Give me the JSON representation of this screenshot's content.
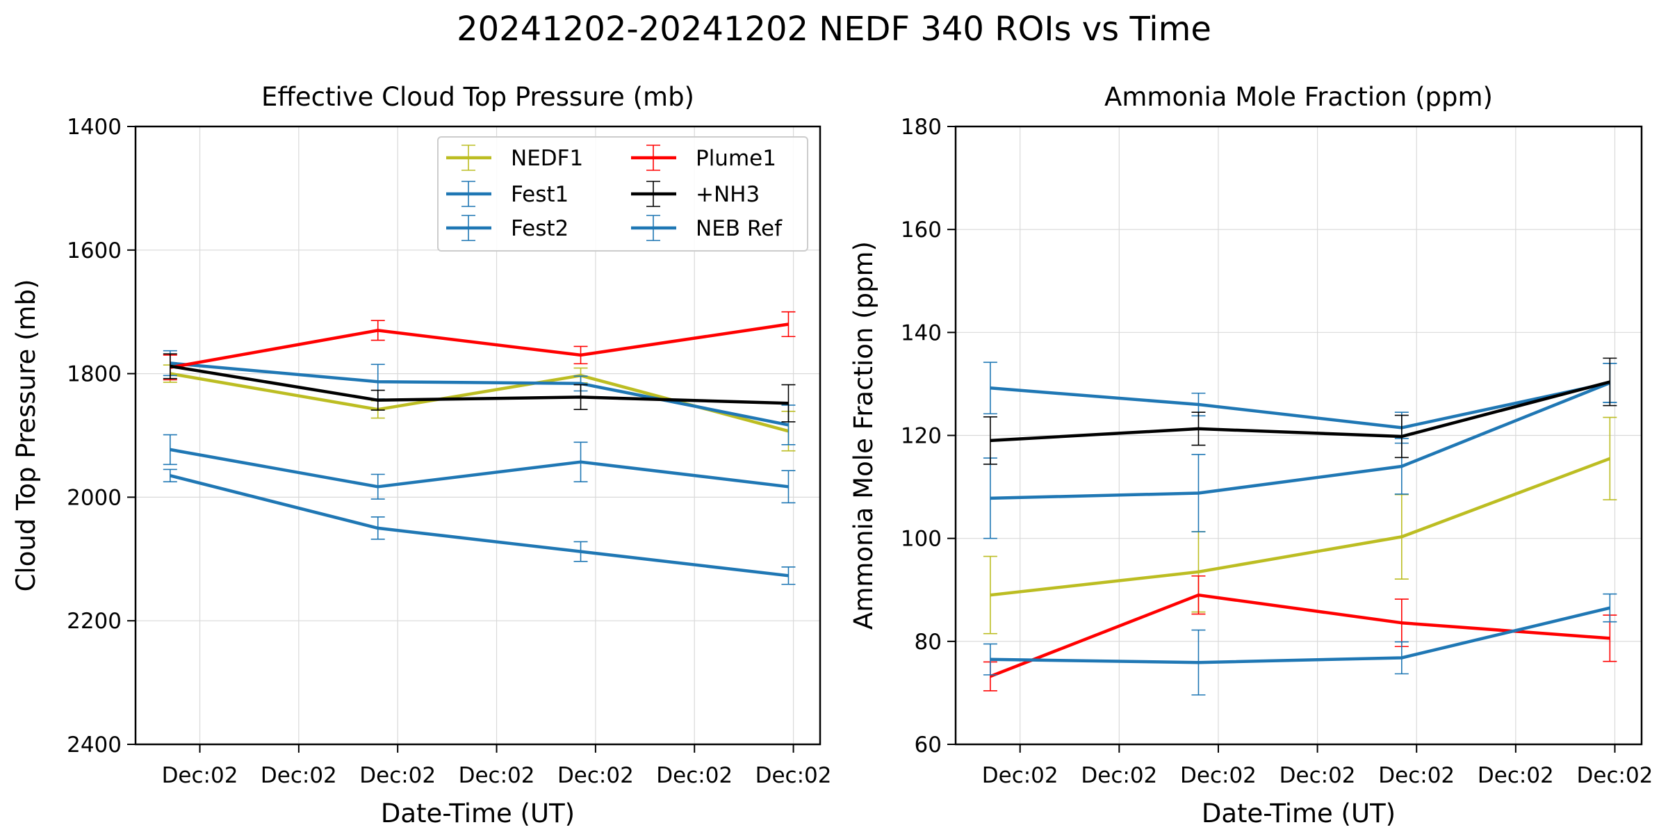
{
  "figure": {
    "title": "20241202-20241202 NEDF 340 ROIs vs Time"
  },
  "chart_data": [
    {
      "type": "line",
      "title": "Effective Cloud Top Pressure (mb)",
      "xlabel": "Date-Time (UT)",
      "ylabel": "Cloud Top Pressure (mb)",
      "x_tick_labels": [
        "Dec:02",
        "Dec:02",
        "Dec:02",
        "Dec:02",
        "Dec:02",
        "Dec:02",
        "Dec:02"
      ],
      "x_ticks": [
        1,
        2,
        3,
        4,
        5,
        6,
        7
      ],
      "xlim": [
        0.35,
        7.27
      ],
      "y_ticks": [
        1400,
        1600,
        1800,
        2000,
        2200,
        2400
      ],
      "ylim": [
        2400,
        1400
      ],
      "y_inverted": true,
      "grid": true,
      "legend": {
        "placement": "top-right",
        "columns": 2,
        "entries": [
          "NEDF1",
          "Fest1",
          "Fest2",
          "Plume1",
          " +NH3",
          "NEB Ref"
        ]
      },
      "series": [
        {
          "name": "NEDF1",
          "color": "#bcbd22",
          "x": [
            0.7,
            2.8,
            4.85,
            6.95
          ],
          "y": [
            1800,
            1858,
            1803,
            1893
          ],
          "err": [
            14,
            14,
            12,
            32
          ]
        },
        {
          "name": "Fest1",
          "color": "#1f77b4",
          "x": [
            0.7,
            2.8,
            4.85,
            6.95
          ],
          "y": [
            1783,
            1813,
            1816,
            1883
          ],
          "err": [
            20,
            28,
            12,
            32
          ]
        },
        {
          "name": "Fest2",
          "color": "#1f77b4",
          "x": [
            0.7,
            2.8,
            4.85,
            6.95
          ],
          "y": [
            1923,
            1983,
            1943,
            1983
          ],
          "err": [
            24,
            20,
            32,
            26
          ]
        },
        {
          "name": "Plume1",
          "color": "#ff0000",
          "x": [
            0.7,
            2.8,
            4.85,
            6.95
          ],
          "y": [
            1790,
            1730,
            1770,
            1720
          ],
          "err": [
            20,
            16,
            14,
            20
          ]
        },
        {
          "name": " +NH3",
          "color": "#000000",
          "x": [
            0.7,
            2.8,
            4.85,
            6.95
          ],
          "y": [
            1788,
            1843,
            1838,
            1848
          ],
          "err": [
            20,
            16,
            20,
            30
          ]
        },
        {
          "name": "NEB Ref",
          "color": "#1f77b4",
          "x": [
            0.7,
            2.8,
            4.85,
            6.95
          ],
          "y": [
            1965,
            2050,
            2088,
            2127
          ],
          "err": [
            10,
            18,
            16,
            14
          ]
        }
      ]
    },
    {
      "type": "line",
      "title": "Ammonia Mole Fraction (ppm)",
      "xlabel": "Date-Time (UT)",
      "ylabel": "Ammonia Mole Fraction (ppm)",
      "x_tick_labels": [
        "Dec:02",
        "Dec:02",
        "Dec:02",
        "Dec:02",
        "Dec:02",
        "Dec:02",
        "Dec:02"
      ],
      "x_ticks": [
        1,
        2,
        3,
        4,
        5,
        6,
        7
      ],
      "xlim": [
        0.35,
        7.27
      ],
      "y_ticks": [
        60,
        80,
        100,
        120,
        140,
        160,
        180
      ],
      "ylim": [
        60,
        180
      ],
      "grid": true,
      "series": [
        {
          "name": "NEDF1",
          "color": "#bcbd22",
          "x": [
            0.7,
            2.8,
            4.85,
            6.95
          ],
          "y": [
            89,
            93.5,
            100.3,
            115.5
          ],
          "err": [
            7.5,
            7.8,
            8.2,
            8
          ]
        },
        {
          "name": "Fest1",
          "color": "#1f77b4",
          "x": [
            0.7,
            2.8,
            4.85,
            6.95
          ],
          "y": [
            129.2,
            126,
            121.5,
            130.2
          ],
          "err": [
            5,
            2.2,
            3,
            3.8
          ]
        },
        {
          "name": "Fest2",
          "color": "#1f77b4",
          "x": [
            0.7,
            2.8,
            4.85,
            6.95
          ],
          "y": [
            107.8,
            108.8,
            114,
            130.2
          ],
          "err": [
            7.8,
            7.5,
            5.4,
            3.8
          ]
        },
        {
          "name": "Plume1",
          "color": "#ff0000",
          "x": [
            0.7,
            2.8,
            4.85,
            6.95
          ],
          "y": [
            73.2,
            89,
            83.6,
            80.6
          ],
          "err": [
            2.8,
            3.7,
            4.6,
            4.5
          ]
        },
        {
          "name": " +NH3",
          "color": "#000000",
          "x": [
            0.7,
            2.8,
            4.85,
            6.95
          ],
          "y": [
            119,
            121.3,
            119.8,
            130.4
          ],
          "err": [
            4.6,
            3.2,
            4.1,
            4.6
          ]
        },
        {
          "name": "NEB Ref",
          "color": "#1f77b4",
          "x": [
            0.7,
            2.8,
            4.85,
            6.95
          ],
          "y": [
            76.5,
            75.9,
            76.8,
            86.5
          ],
          "err": [
            3,
            6.3,
            3.1,
            2.7
          ]
        }
      ]
    }
  ]
}
